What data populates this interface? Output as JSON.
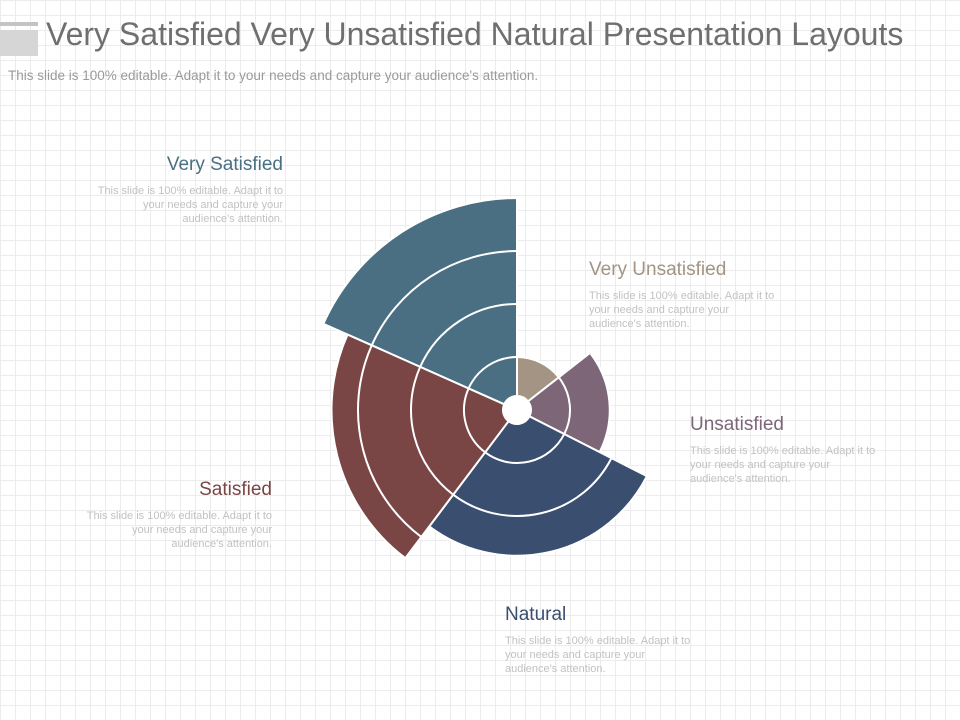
{
  "slide": {
    "title": "Very Satisfied Very Unsatisfied Natural Presentation Layouts",
    "subtitle": "This slide is 100% editable. Adapt it to your needs and capture your audience's attention."
  },
  "chart_data": {
    "type": "polar-area",
    "title": "",
    "rings": 4,
    "grid": false,
    "legend": "none",
    "segments": [
      {
        "name": "Very Satisfied",
        "value": 4,
        "color": "#4a6f83",
        "description": "This slide is 100% editable. Adapt it to your needs and capture your audience's attention."
      },
      {
        "name": "Very Unsatisfied",
        "value": 1,
        "color": "#a39483",
        "description": "This slide is 100% editable. Adapt it to your needs and capture your audience's attention."
      },
      {
        "name": "Unsatisfied",
        "value": 1.75,
        "color": "#7e6679",
        "description": "This slide is 100% editable. Adapt it to your needs and capture your audience's attention."
      },
      {
        "name": "Natural",
        "value": 2.75,
        "color": "#3a4e6f",
        "description": "This slide is 100% editable. Adapt it to your needs and capture your audience's attention."
      },
      {
        "name": "Satisfied",
        "value": 3.5,
        "color": "#7a4545",
        "description": "This slide is 100% editable. Adapt it to your needs and capture your audience's attention."
      }
    ]
  }
}
